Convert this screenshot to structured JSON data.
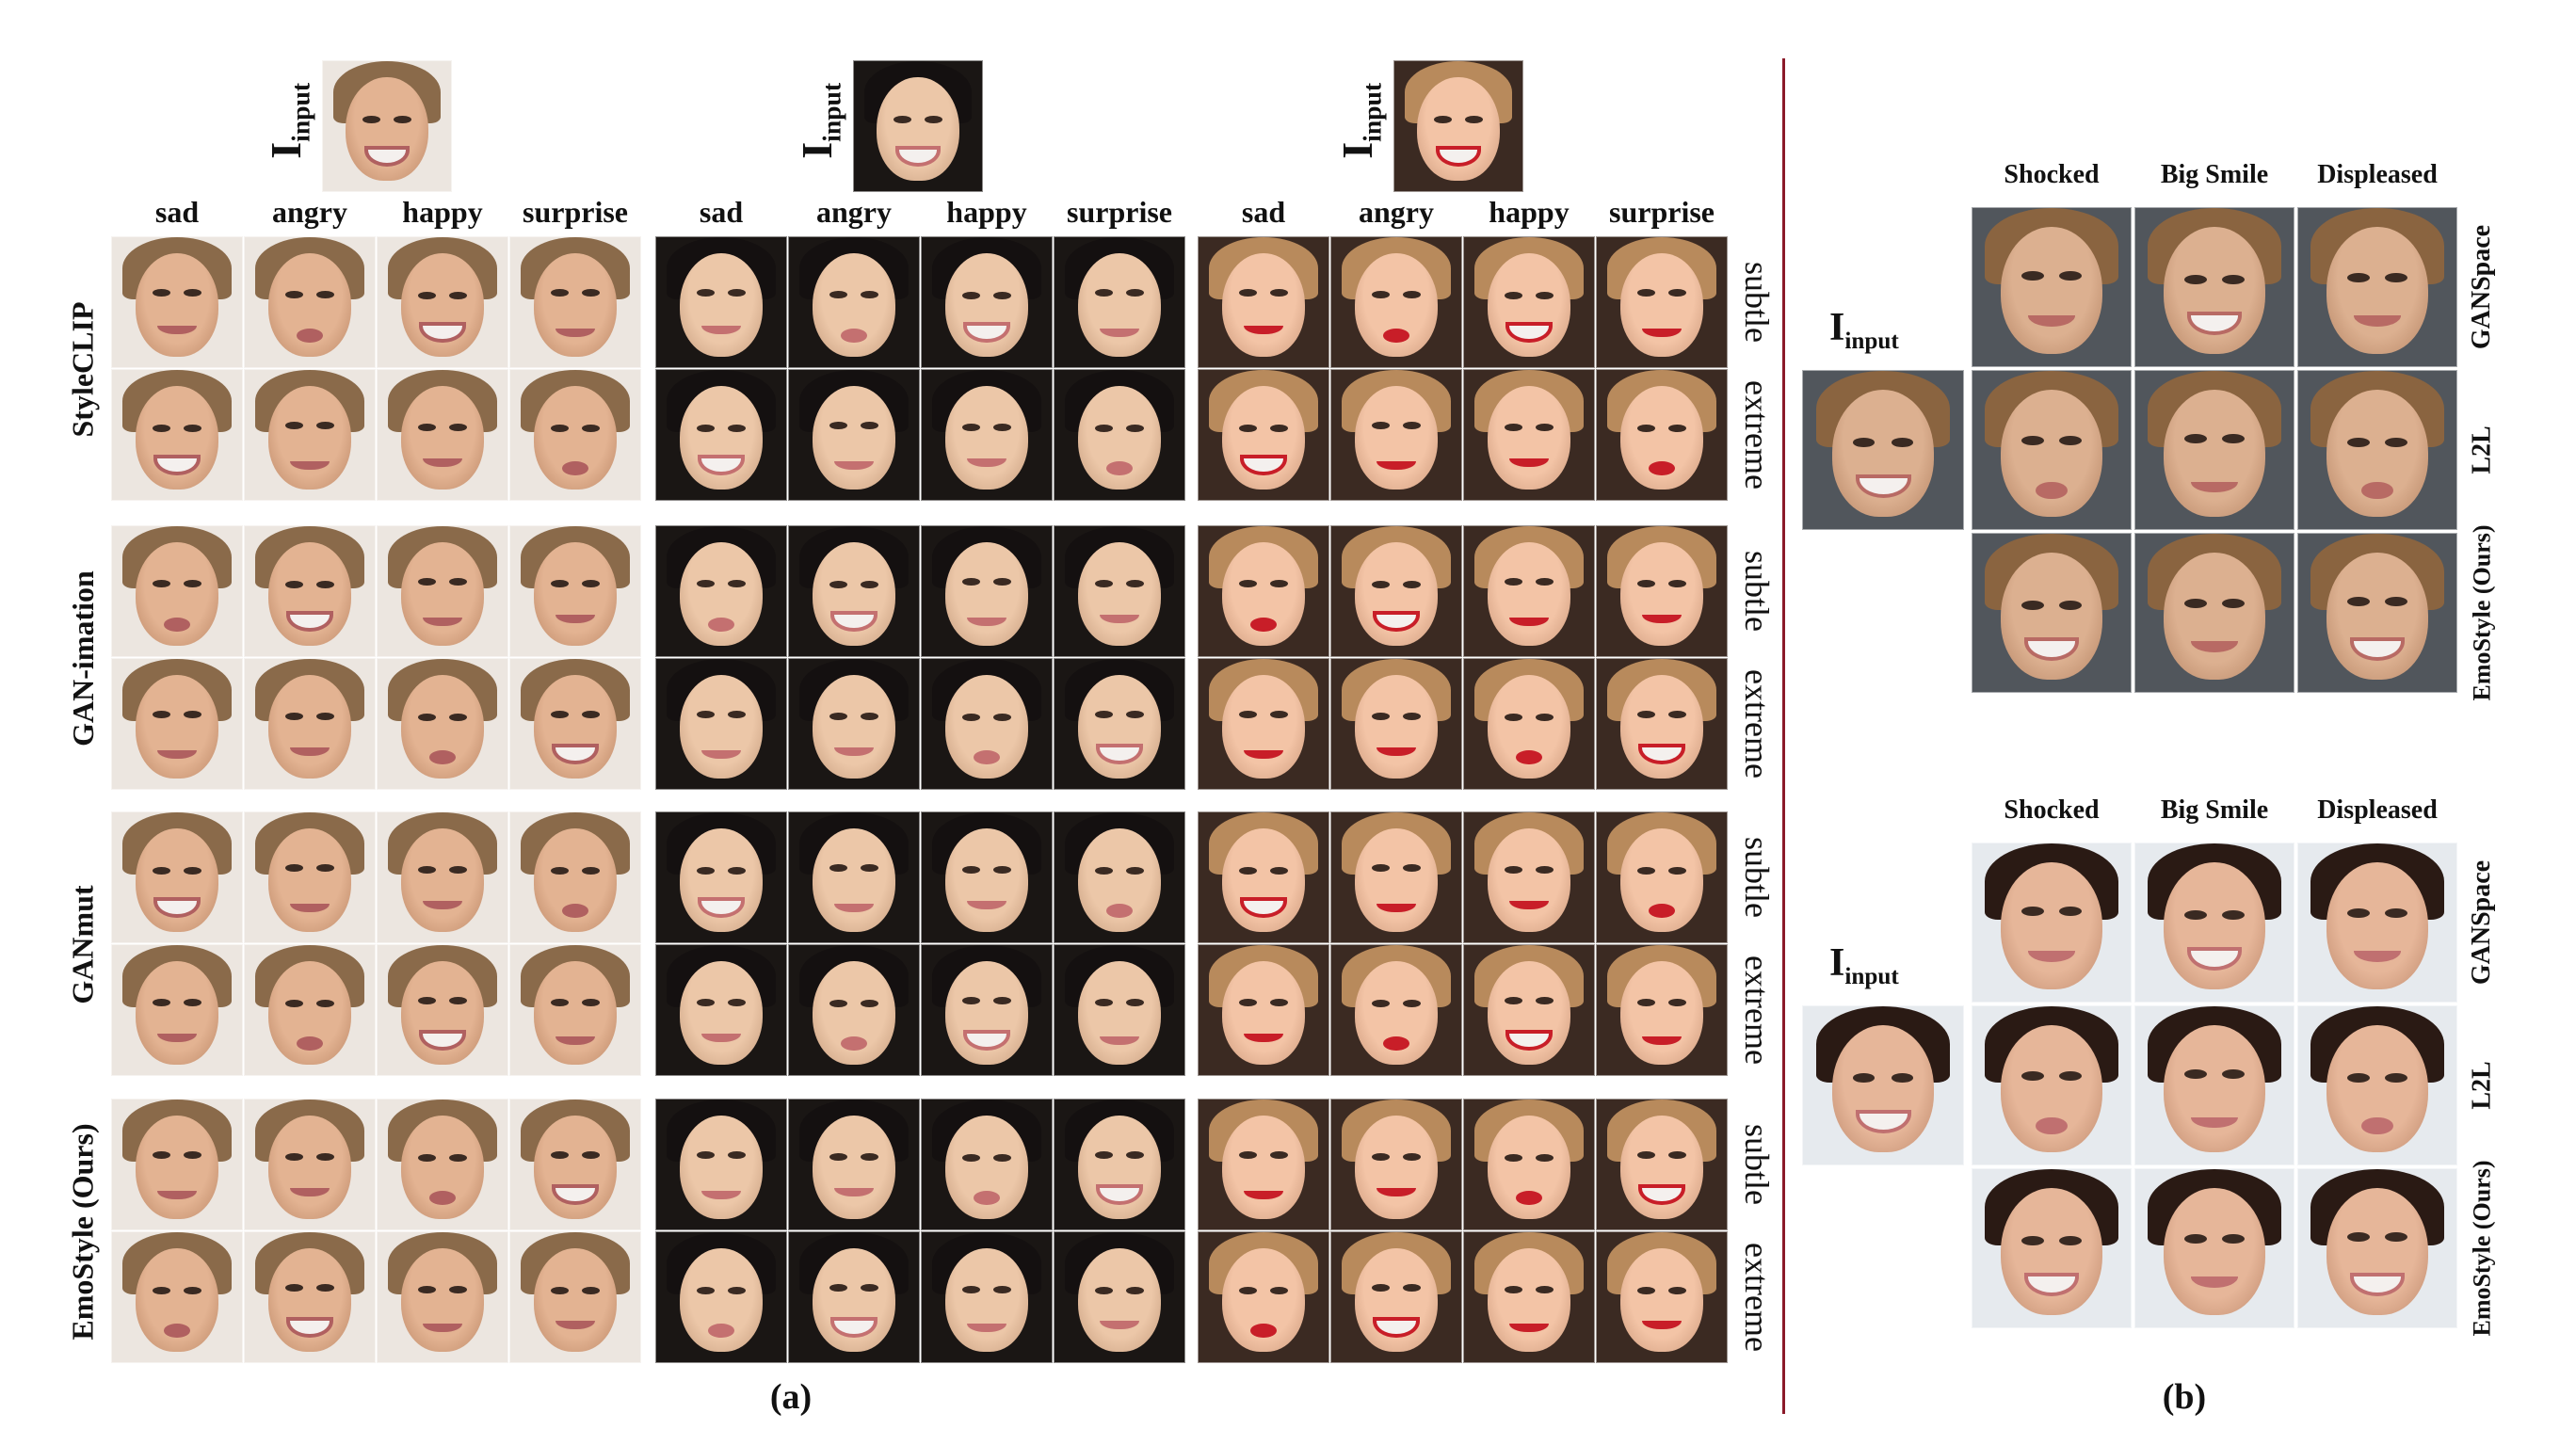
{
  "panel_a": {
    "input_label": "I",
    "input_subscript": "input",
    "emotions": [
      "sad",
      "angry",
      "happy",
      "surprise"
    ],
    "methods": [
      "StyleCLIP",
      "GAN-imation",
      "GANmut",
      "EmoStyle (Ours)"
    ],
    "intensities": [
      "subtle",
      "extreme"
    ],
    "caption": "(a)"
  },
  "panel_b": {
    "input_label": "I",
    "input_subscript": "input",
    "columns": [
      "Shocked",
      "Big Smile",
      "Displeased"
    ],
    "rows": [
      "GANSpace",
      "L2L",
      "EmoStyle (Ours)"
    ],
    "caption": "(b)"
  },
  "colors": {
    "divider": "#8b1a2a",
    "skin_man": "#e8b89a",
    "skin_woman": "#f0c8a6",
    "skin_red": "#f2bfa0",
    "hair_dark": "#1b1512",
    "lips_red": "#c0202a"
  }
}
